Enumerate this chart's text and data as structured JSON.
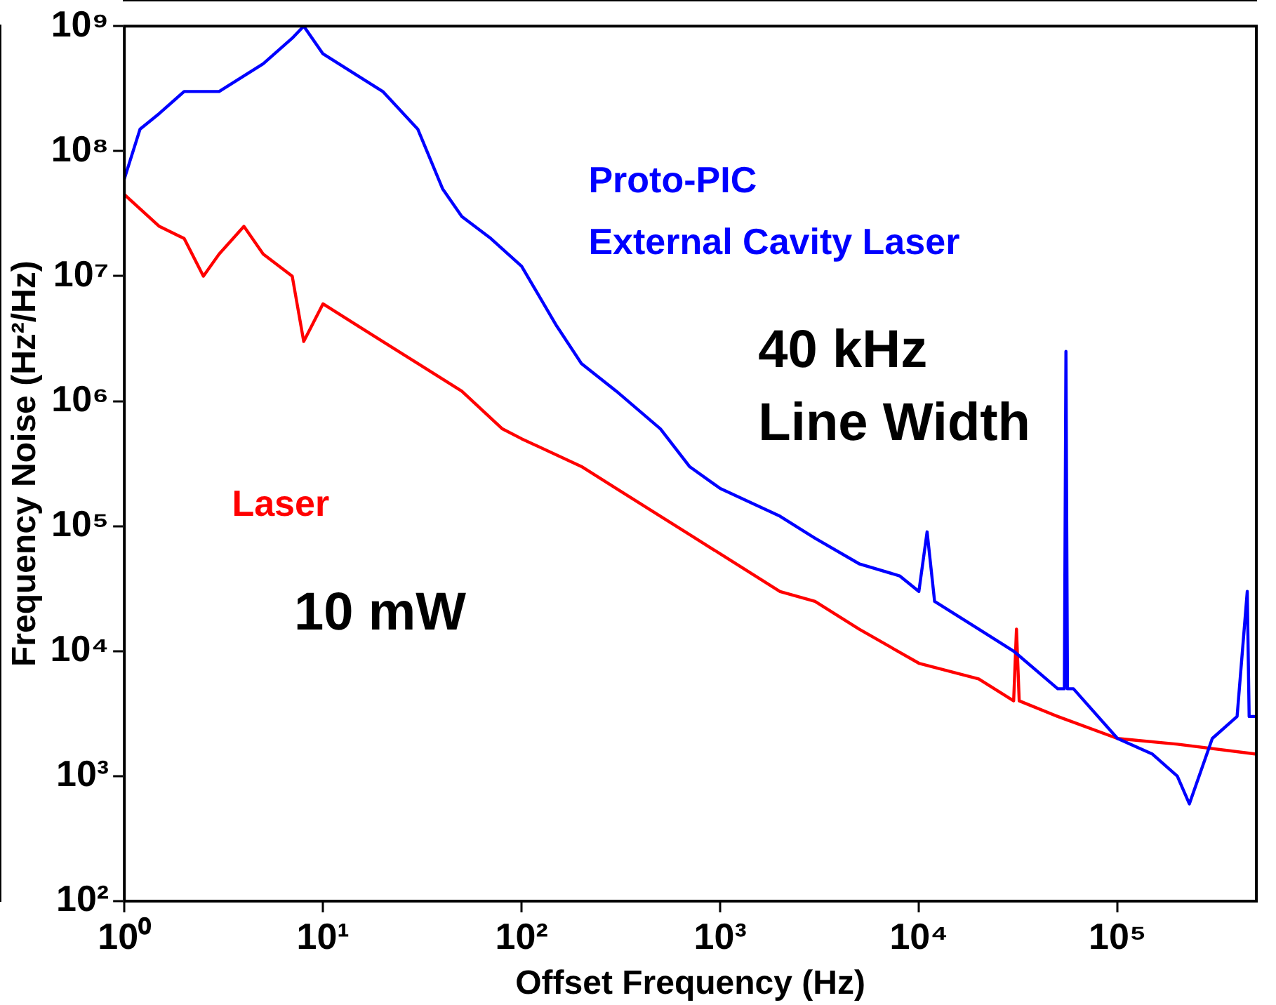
{
  "chart_data": {
    "type": "line",
    "xlabel": "Offset Frequency (Hz)",
    "ylabel": "Frequency Noise (Hz²/Hz)",
    "log": "xy",
    "grid": false,
    "legend": false,
    "marker": "none",
    "line_style": "solid",
    "xlim": [
      1,
      500000
    ],
    "ylim": [
      100,
      1000000000
    ],
    "xticks": [
      {
        "value": 1,
        "label": "10⁰"
      },
      {
        "value": 10,
        "label": "10¹"
      },
      {
        "value": 100,
        "label": "10²"
      },
      {
        "value": 1000,
        "label": "10³"
      },
      {
        "value": 10000,
        "label": "10⁴"
      },
      {
        "value": 100000,
        "label": "10⁵"
      }
    ],
    "yticks": [
      {
        "value": 100,
        "label": "10²"
      },
      {
        "value": 1000,
        "label": "10³"
      },
      {
        "value": 10000,
        "label": "10⁴"
      },
      {
        "value": 100000,
        "label": "10⁵"
      },
      {
        "value": 1000000,
        "label": "10⁶"
      },
      {
        "value": 10000000,
        "label": "10⁷"
      },
      {
        "value": 100000000,
        "label": "10⁸"
      },
      {
        "value": 1000000000,
        "label": "10⁹"
      }
    ],
    "series": [
      {
        "name": "Proto-PIC\nExternal Cavity Laser",
        "color": "#0000ff",
        "x": [
          1,
          1.2,
          1.5,
          2,
          3,
          4,
          5,
          7,
          8,
          10,
          15,
          20,
          30,
          40,
          50,
          70,
          100,
          150,
          200,
          300,
          500,
          700,
          1000,
          2000,
          3000,
          5000,
          8000,
          10000,
          11000,
          12000,
          20000,
          30000,
          50000,
          54000,
          55000,
          56000,
          60000,
          100000,
          150000,
          200000,
          230000,
          300000,
          400000,
          450000,
          460000,
          500000
        ],
        "values": [
          60000000,
          150000000,
          200000000,
          300000000,
          300000000,
          400000000,
          500000000,
          800000000,
          1000000000,
          600000000,
          400000000,
          300000000,
          150000000,
          50000000,
          30000000,
          20000000,
          12000000,
          4000000,
          2000000,
          1200000,
          600000,
          300000,
          200000,
          120000,
          80000,
          50000,
          40000,
          30000,
          90000,
          25000,
          15000,
          10000,
          5000,
          5000,
          2500000,
          5000,
          5000,
          2000,
          1500,
          1000,
          600,
          2000,
          3000,
          30000,
          3000,
          3000
        ]
      },
      {
        "name": "Laser",
        "color": "#ff0000",
        "x": [
          1,
          1.5,
          2,
          2.5,
          3,
          4,
          5,
          7,
          8,
          10,
          20,
          30,
          50,
          80,
          100,
          200,
          300,
          500,
          1000,
          2000,
          3000,
          5000,
          10000,
          20000,
          30000,
          31000,
          32000,
          50000,
          100000,
          200000,
          500000
        ],
        "values": [
          45000000,
          25000000,
          20000000,
          10000000,
          15000000,
          25000000,
          15000000,
          10000000,
          3000000,
          6000000,
          3000000,
          2000000,
          1200000,
          600000,
          500000,
          300000,
          200000,
          120000,
          60000,
          30000,
          25000,
          15000,
          8000,
          6000,
          4000,
          15000,
          4000,
          3000,
          2000,
          1800,
          1500
        ]
      }
    ],
    "annotations": [
      "40 kHz\nLine Width",
      "10 mW"
    ]
  }
}
